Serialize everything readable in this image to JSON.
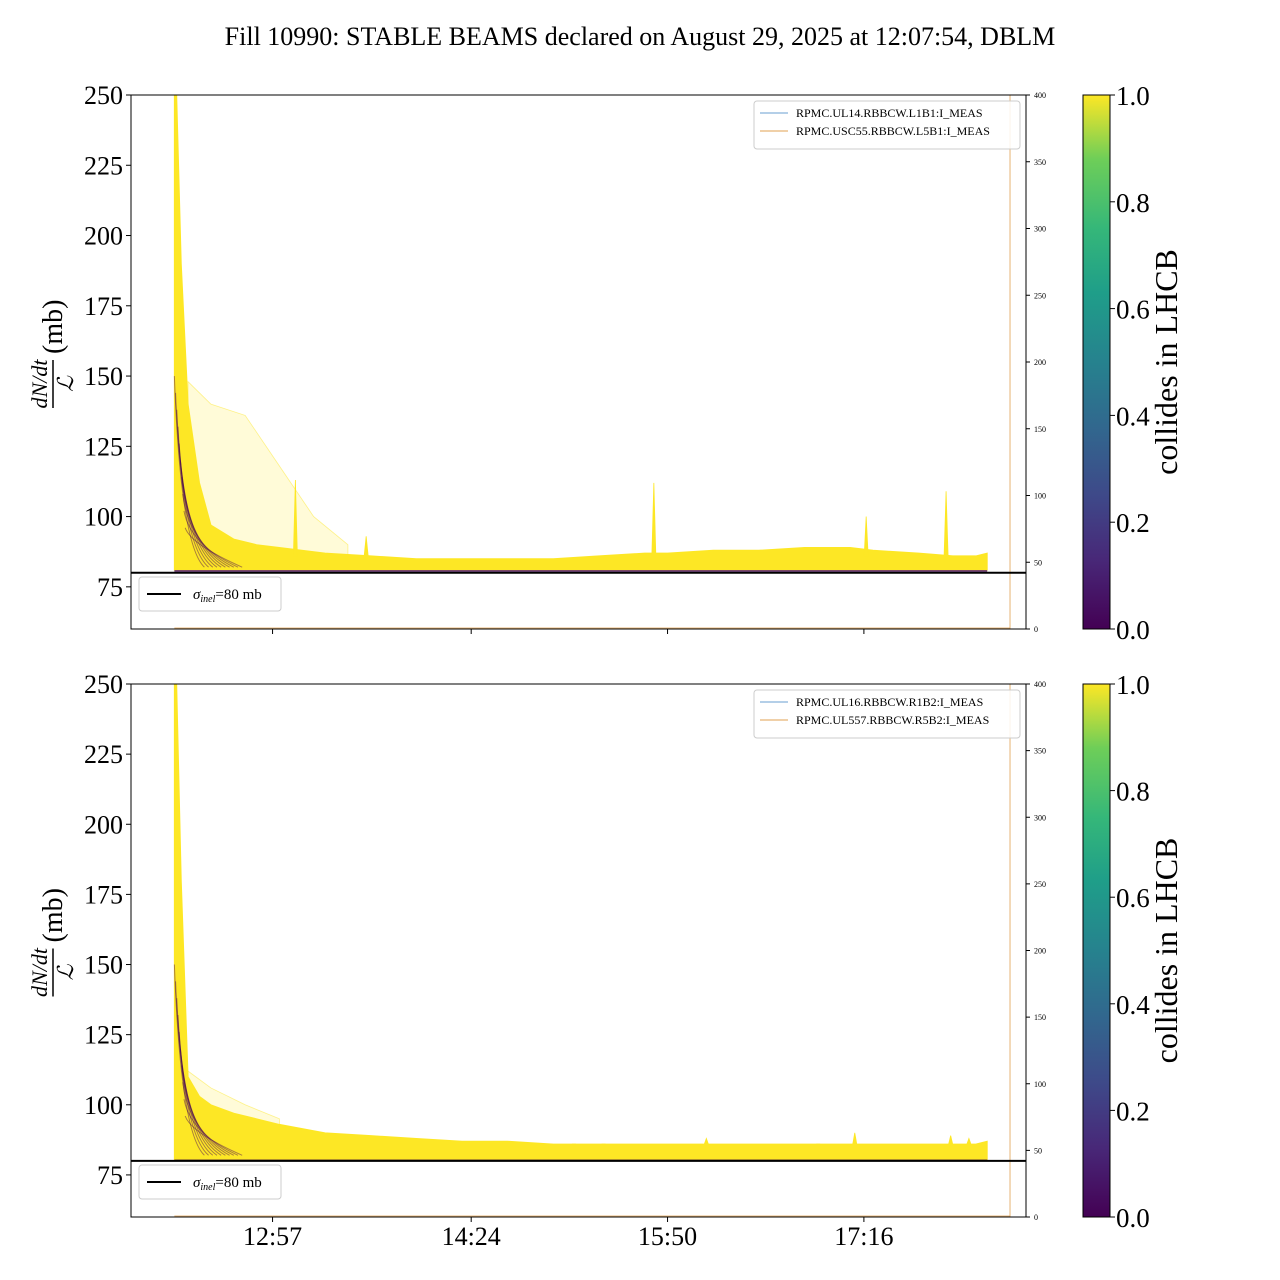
{
  "title": "Fill 10990: STABLE BEAMS declared on August 29, 2025 at 12:07:54, DBLM",
  "colors": {
    "collides_high": "#fde725",
    "collides_low": "#440154",
    "legend_series_1": "#6a9fd0",
    "legend_series_2": "#e0a050",
    "reference_line": "#000000"
  },
  "colorbar": {
    "label": "collides in LHCB",
    "ticks": [
      "0.0",
      "0.2",
      "0.4",
      "0.6",
      "0.8",
      "1.0"
    ],
    "colormap": "viridis",
    "range": [
      0,
      1
    ]
  },
  "shared_x_axis": {
    "ticks": [
      "12:57",
      "14:24",
      "15:50",
      "17:16"
    ]
  },
  "chart_data": [
    {
      "type": "line",
      "panel": "top",
      "ylabel": "dN/dt / L (mb)",
      "ylabel_parts": {
        "numerator": "dN/dt",
        "denominator": "ℒ",
        "unit": "(mb)"
      },
      "ylim": [
        60,
        250
      ],
      "yticks": [
        "75",
        "100",
        "125",
        "150",
        "175",
        "200",
        "225",
        "250"
      ],
      "y2lim": [
        0,
        400
      ],
      "y2ticks": [
        "0",
        "50",
        "100",
        "150",
        "200",
        "250",
        "300",
        "350",
        "400"
      ],
      "xlim": [
        "11:55",
        "18:27"
      ],
      "x_tick_times": [
        "12:57",
        "14:24",
        "15:50",
        "17:16"
      ],
      "reference": {
        "label_sym": "σ",
        "label_sub": "inel",
        "label_rest": "=80 mb",
        "value": 80
      },
      "legend": [
        "RPMC.UL14.RBBCW.L1B1:I_MEAS",
        "RPMC.USC55.RBBCW.L5B1:I_MEAS"
      ],
      "legend_placement": "upper right",
      "series_colliding_envelope": {
        "x": [
          "12:14",
          "12:15",
          "12:17",
          "12:20",
          "12:25",
          "12:30",
          "12:40",
          "12:50",
          "13:00",
          "13:20",
          "13:40",
          "14:00",
          "14:20",
          "14:40",
          "15:00",
          "15:20",
          "15:40",
          "15:50",
          "16:10",
          "16:30",
          "16:50",
          "17:10",
          "17:20",
          "17:40",
          "17:55",
          "18:05",
          "18:10"
        ],
        "upper": [
          250,
          250,
          190,
          140,
          112,
          97,
          92,
          90,
          89,
          87,
          86,
          85,
          85,
          85,
          85,
          86,
          87,
          87,
          88,
          88,
          89,
          89,
          88,
          87,
          86,
          86,
          87
        ],
        "lower": [
          81,
          81,
          81,
          81,
          81,
          81,
          81,
          81,
          81,
          81,
          81,
          81,
          81,
          81,
          81,
          81,
          81,
          81,
          81,
          81,
          81,
          81,
          81,
          81,
          81,
          81,
          81
        ]
      },
      "series_scattered_traces": {
        "x": [
          "12:20",
          "12:30",
          "12:45",
          "13:00",
          "13:15",
          "13:30"
        ],
        "upper": [
          148,
          140,
          136,
          118,
          100,
          90
        ]
      },
      "spikes": [
        {
          "x": "13:07",
          "y": 113
        },
        {
          "x": "13:38",
          "y": 93
        },
        {
          "x": "15:44",
          "y": 112
        },
        {
          "x": "17:17",
          "y": 100
        },
        {
          "x": "17:52",
          "y": 109
        }
      ],
      "vertical_marker_time": "18:20"
    },
    {
      "type": "line",
      "panel": "bottom",
      "ylabel": "dN/dt / L (mb)",
      "ylabel_parts": {
        "numerator": "dN/dt",
        "denominator": "ℒ",
        "unit": "(mb)"
      },
      "ylim": [
        60,
        250
      ],
      "yticks": [
        "75",
        "100",
        "125",
        "150",
        "175",
        "200",
        "225",
        "250"
      ],
      "y2lim": [
        0,
        400
      ],
      "y2ticks": [
        "0",
        "50",
        "100",
        "150",
        "200",
        "250",
        "300",
        "350",
        "400"
      ],
      "xlim": [
        "11:55",
        "18:27"
      ],
      "x_tick_times": [
        "12:57",
        "14:24",
        "15:50",
        "17:16"
      ],
      "reference": {
        "label_sym": "σ",
        "label_sub": "inel",
        "label_rest": "=80 mb",
        "value": 80
      },
      "legend": [
        "RPMC.UL16.RBBCW.R1B2:I_MEAS",
        "RPMC.UL557.RBBCW.R5B2:I_MEAS"
      ],
      "legend_placement": "upper right",
      "series_colliding_envelope": {
        "x": [
          "12:14",
          "12:15",
          "12:17",
          "12:20",
          "12:25",
          "12:30",
          "12:40",
          "12:50",
          "13:00",
          "13:20",
          "13:40",
          "14:00",
          "14:20",
          "14:40",
          "15:00",
          "15:20",
          "15:40",
          "15:50",
          "16:10",
          "16:30",
          "16:50",
          "17:10",
          "17:20",
          "17:40",
          "17:55",
          "18:05",
          "18:10"
        ],
        "upper": [
          250,
          250,
          180,
          110,
          103,
          100,
          97,
          95,
          93,
          90,
          89,
          88,
          87,
          87,
          86,
          86,
          86,
          86,
          86,
          86,
          86,
          86,
          86,
          86,
          86,
          86,
          87
        ],
        "lower": [
          80.5,
          80.5,
          80.5,
          80.5,
          80.5,
          80.5,
          80.5,
          80.5,
          80.5,
          80.5,
          80.5,
          80.5,
          80.5,
          80.5,
          80.5,
          80.5,
          80.5,
          80.5,
          80.5,
          80.5,
          80.5,
          80.5,
          80.5,
          80.5,
          80.5,
          80.5,
          80.5
        ]
      },
      "series_scattered_traces": {
        "x": [
          "12:20",
          "12:30",
          "12:45",
          "13:00"
        ],
        "upper": [
          112,
          106,
          100,
          95
        ]
      },
      "spikes": [
        {
          "x": "15:09",
          "y": 86
        },
        {
          "x": "15:22",
          "y": 86
        },
        {
          "x": "16:07",
          "y": 88
        },
        {
          "x": "16:56",
          "y": 86
        },
        {
          "x": "17:12",
          "y": 90
        },
        {
          "x": "17:54",
          "y": 89
        },
        {
          "x": "18:02",
          "y": 88
        }
      ],
      "vertical_marker_time": "18:20"
    }
  ]
}
